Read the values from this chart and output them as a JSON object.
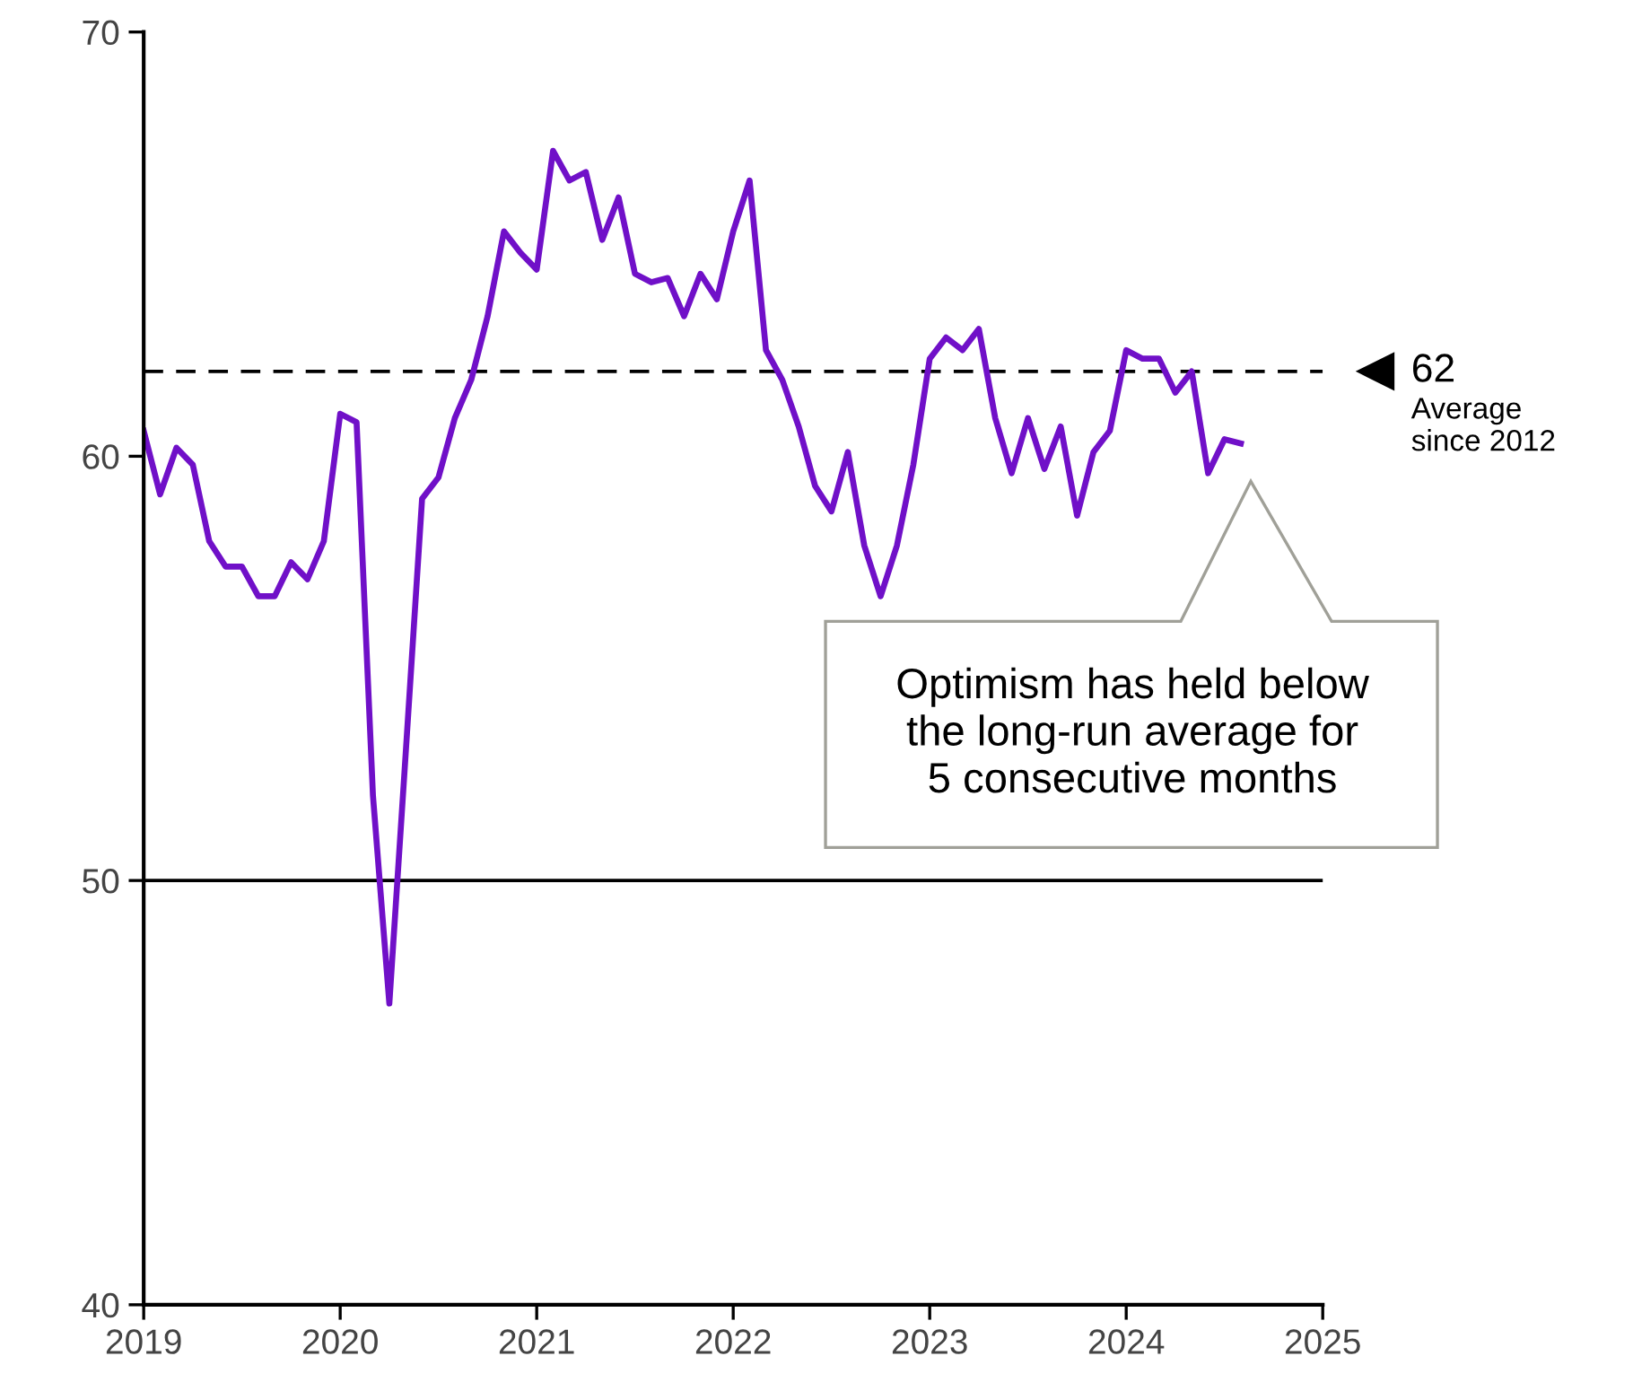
{
  "chart_data": {
    "type": "line",
    "x": [
      "2019-01",
      "2019-02",
      "2019-03",
      "2019-04",
      "2019-05",
      "2019-06",
      "2019-07",
      "2019-08",
      "2019-09",
      "2019-10",
      "2019-11",
      "2019-12",
      "2020-01",
      "2020-02",
      "2020-03",
      "2020-04",
      "2020-05",
      "2020-06",
      "2020-07",
      "2020-08",
      "2020-09",
      "2020-10",
      "2020-11",
      "2020-12",
      "2021-01",
      "2021-02",
      "2021-03",
      "2021-04",
      "2021-05",
      "2021-06",
      "2021-07",
      "2021-08",
      "2021-09",
      "2021-10",
      "2021-11",
      "2021-12",
      "2022-01",
      "2022-02",
      "2022-03",
      "2022-04",
      "2022-05",
      "2022-06",
      "2022-07",
      "2022-08",
      "2022-09",
      "2022-10",
      "2022-11",
      "2022-12",
      "2023-01",
      "2023-02",
      "2023-03",
      "2023-04",
      "2023-05",
      "2023-06",
      "2023-07",
      "2023-08",
      "2023-09",
      "2023-10",
      "2023-11",
      "2023-12",
      "2024-01",
      "2024-02",
      "2024-03",
      "2024-04",
      "2024-05",
      "2024-06",
      "2024-07",
      "2024-08"
    ],
    "series": [
      {
        "color": "#7010c8",
        "values": [
          60.6,
          59.1,
          60.2,
          59.8,
          58.0,
          57.4,
          57.4,
          56.7,
          56.7,
          57.5,
          57.1,
          58.0,
          61.0,
          60.8,
          52.0,
          47.1,
          53.0,
          59.0,
          59.5,
          60.9,
          61.8,
          63.3,
          65.3,
          64.8,
          64.4,
          67.2,
          66.5,
          66.7,
          65.1,
          66.1,
          64.3,
          64.1,
          64.2,
          63.3,
          64.3,
          63.7,
          65.3,
          66.5,
          62.5,
          61.8,
          60.7,
          59.3,
          58.7,
          60.1,
          57.9,
          56.7,
          57.9,
          59.8,
          62.3,
          62.8,
          62.5,
          63.0,
          60.9,
          59.6,
          60.9,
          59.7,
          60.7,
          58.6,
          60.1,
          60.6,
          62.5,
          62.3,
          62.3,
          61.5,
          62.0,
          59.6,
          60.4,
          60.3
        ]
      }
    ],
    "xlim": [
      "2019",
      "2025"
    ],
    "xticks": [
      "2019",
      "2020",
      "2021",
      "2022",
      "2023",
      "2024",
      "2025"
    ],
    "ylim": [
      40,
      70
    ],
    "yticks": [
      40,
      50,
      60,
      70
    ],
    "grid": false,
    "legend": false,
    "marker": "none",
    "line_style": "solid",
    "ref_lines": [
      {
        "axis": "y",
        "value": 62,
        "label": "62",
        "color": "#000000",
        "line_style": "dashed"
      },
      {
        "axis": "y",
        "value": 50,
        "color": "#000000",
        "line_style": "solid"
      }
    ],
    "annotations": [
      "Average\nsince 2012",
      "Optimism has held below\nthe long-run average for\n5 consecutive months"
    ]
  }
}
